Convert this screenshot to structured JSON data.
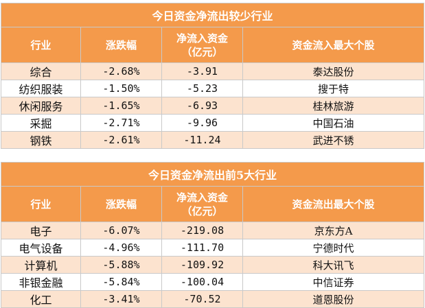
{
  "table1": {
    "title": "今日资金净流出较少行业",
    "headers": [
      "行业",
      "涨跌幅",
      "净流入资金\n（亿元）",
      "资金流入最大个股"
    ],
    "rows": [
      [
        "综合",
        "-2.68%",
        "-3.91",
        "泰达股份"
      ],
      [
        "纺织服装",
        "-1.50%",
        "-5.23",
        "搜于特"
      ],
      [
        "休闲服务",
        "-1.65%",
        "-6.93",
        "桂林旅游"
      ],
      [
        "采掘",
        "-2.71%",
        "-9.96",
        "中国石油"
      ],
      [
        "钢铁",
        "-2.61%",
        "-11.24",
        "武进不锈"
      ]
    ]
  },
  "table2": {
    "title": "今日资金净流出前5大行业",
    "headers": [
      "行业",
      "涨跌幅",
      "净流入资金\n（亿元）",
      "资金流出最大个股"
    ],
    "rows": [
      [
        "电子",
        "-6.07%",
        "-219.08",
        "京东方A"
      ],
      [
        "电气设备",
        "-4.96%",
        "-111.70",
        "宁德时代"
      ],
      [
        "计算机",
        "-5.88%",
        "-109.92",
        "科大讯飞"
      ],
      [
        "非银金融",
        "-5.84%",
        "-100.04",
        "中信证券"
      ],
      [
        "化工",
        "-3.41%",
        "-70.52",
        "道恩股份"
      ]
    ]
  }
}
